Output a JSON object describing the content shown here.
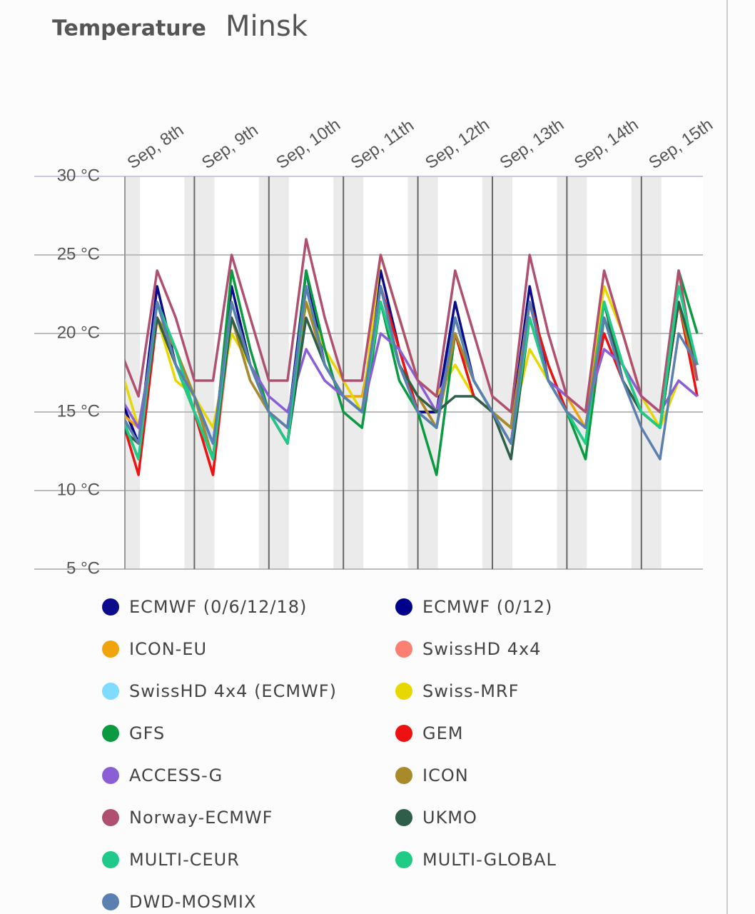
{
  "chart_data": {
    "type": "line",
    "title": "Temperature",
    "subtitle": "Minsk",
    "categories": [
      "Sep, 8th",
      null,
      null,
      null,
      "Sep, 9th",
      null,
      null,
      null,
      "Sep, 10th",
      null,
      null,
      null,
      "Sep, 11th",
      null,
      null,
      null,
      "Sep, 12th",
      null,
      null,
      null,
      "Sep, 13th",
      null,
      null,
      null,
      "Sep, 14th",
      null,
      null,
      null,
      "Sep, 15th",
      null,
      null,
      null
    ],
    "ylim": [
      5,
      30
    ],
    "yticks": [
      {
        "value": 5,
        "label": "5 °C"
      },
      {
        "value": 10,
        "label": "10 °C"
      },
      {
        "value": 15,
        "label": "15 °C"
      },
      {
        "value": 20,
        "label": "20 °C"
      },
      {
        "value": 25,
        "label": "25 °C"
      },
      {
        "value": 30,
        "label": "30 °C"
      }
    ],
    "grid": true,
    "legend": "bottom",
    "series": [
      {
        "name": "ECMWF (0/6/12/18)",
        "color": "#0b0b8c",
        "values": [
          16,
          13,
          23,
          18,
          16,
          12,
          23,
          18,
          15,
          14,
          24,
          18,
          16,
          15,
          24,
          19,
          15,
          15,
          22,
          17,
          15,
          14,
          23,
          17,
          15,
          14,
          22,
          18,
          15,
          14,
          22,
          18
        ]
      },
      {
        "name": "ECMWF (0/12)",
        "color": "#00008b",
        "values": [
          16,
          13,
          22,
          18,
          16,
          13,
          22,
          18,
          15,
          14,
          23,
          18,
          16,
          15,
          23,
          18,
          15,
          15,
          21,
          17,
          15,
          14,
          22,
          17,
          15,
          14,
          22,
          17,
          15,
          14,
          22,
          18
        ]
      },
      {
        "name": "ICON-EU",
        "color": "#f0a30a",
        "values": [
          15,
          14,
          21,
          18,
          15,
          12,
          21,
          17,
          15,
          14,
          23,
          18,
          16,
          16,
          22,
          18,
          16,
          15,
          20,
          17,
          15,
          13,
          21,
          17,
          16,
          14,
          22,
          18,
          15,
          14,
          22,
          17
        ]
      },
      {
        "name": "SwissHD 4x4",
        "color": "#fa8072",
        "values": [
          15,
          12,
          21,
          18,
          15,
          11,
          21,
          17,
          15,
          13,
          23,
          18,
          16,
          15,
          22,
          18,
          16,
          14,
          20,
          17,
          15,
          13,
          21,
          17,
          15,
          14,
          21,
          18,
          15,
          14,
          22,
          17
        ]
      },
      {
        "name": "SwissHD 4x4 (ECMWF)",
        "color": "#7fdbff",
        "values": [
          15,
          12,
          22,
          19,
          15,
          13,
          21,
          17,
          15,
          14,
          23,
          18,
          16,
          15,
          22,
          18,
          15,
          14,
          21,
          17,
          15,
          13,
          22,
          18,
          15,
          14,
          22,
          18,
          15,
          14,
          22,
          18
        ]
      },
      {
        "name": "Swiss-MRF",
        "color": "#e6d800",
        "values": [
          18,
          14,
          21,
          17,
          16,
          14,
          20,
          18,
          15,
          14,
          22,
          19,
          17,
          15,
          25,
          21,
          17,
          16,
          18,
          16,
          15,
          14,
          19,
          17,
          16,
          15,
          23,
          20,
          16,
          14,
          17,
          16
        ]
      },
      {
        "name": "GFS",
        "color": "#0a9a40",
        "values": [
          15,
          12,
          21,
          19,
          16,
          12,
          24,
          19,
          15,
          13,
          24,
          19,
          15,
          14,
          22,
          17,
          15,
          11,
          20,
          16,
          15,
          13,
          22,
          18,
          15,
          12,
          21,
          18,
          15,
          14,
          24,
          20
        ]
      },
      {
        "name": "GEM",
        "color": "#ee1111",
        "values": [
          15,
          11,
          21,
          18,
          15,
          11,
          22,
          18,
          15,
          13,
          23,
          18,
          16,
          15,
          23,
          19,
          15,
          14,
          20,
          16,
          15,
          13,
          22,
          18,
          15,
          14,
          20,
          17,
          15,
          14,
          22,
          16
        ]
      },
      {
        "name": "ACCESS-G",
        "color": "#8a5fd6",
        "values": [
          16,
          14,
          21,
          18,
          16,
          13,
          21,
          18,
          16,
          15,
          19,
          17,
          16,
          15,
          20,
          19,
          17,
          15,
          20,
          17,
          15,
          13,
          21,
          17,
          16,
          15,
          19,
          18,
          16,
          15,
          17,
          16
        ]
      },
      {
        "name": "ICON",
        "color": "#a88a2a",
        "values": [
          15,
          13,
          21,
          19,
          16,
          12,
          21,
          17,
          15,
          14,
          22,
          18,
          16,
          15,
          23,
          18,
          16,
          14,
          20,
          17,
          15,
          14,
          22,
          17,
          15,
          14,
          22,
          18,
          15,
          14,
          22,
          17
        ]
      },
      {
        "name": "Norway-ECMWF",
        "color": "#b05070",
        "values": [
          19,
          16,
          24,
          21,
          17,
          17,
          25,
          21,
          17,
          17,
          26,
          21,
          17,
          17,
          25,
          21,
          17,
          16,
          24,
          20,
          16,
          15,
          25,
          20,
          16,
          15,
          24,
          20,
          16,
          15,
          24,
          17
        ]
      },
      {
        "name": "UKMO",
        "color": "#2f5e4a",
        "values": [
          14,
          13,
          21,
          18,
          15,
          12,
          21,
          18,
          15,
          13,
          21,
          18,
          16,
          15,
          22,
          18,
          16,
          15,
          16,
          16,
          15,
          12,
          21,
          17,
          15,
          13,
          22,
          17,
          15,
          14,
          22,
          18
        ]
      },
      {
        "name": "MULTI-CEUR",
        "color": "#1ec98a",
        "values": [
          15,
          12,
          22,
          19,
          15,
          12,
          22,
          18,
          15,
          13,
          23,
          18,
          16,
          15,
          23,
          18,
          15,
          14,
          21,
          17,
          15,
          13,
          21,
          17,
          15,
          13,
          22,
          18,
          15,
          14,
          23,
          18
        ]
      },
      {
        "name": "MULTI-GLOBAL",
        "color": "#20cc85",
        "values": [
          15,
          12,
          22,
          18,
          15,
          12,
          22,
          18,
          15,
          14,
          23,
          18,
          16,
          15,
          22,
          18,
          15,
          14,
          21,
          17,
          15,
          13,
          21,
          17,
          15,
          13,
          22,
          18,
          15,
          14,
          23,
          18
        ]
      },
      {
        "name": "DWD-MOSMIX",
        "color": "#5a7fb0",
        "values": [
          15,
          13,
          22,
          18,
          16,
          13,
          22,
          18,
          15,
          14,
          23,
          18,
          16,
          15,
          23,
          18,
          15,
          14,
          21,
          17,
          15,
          13,
          22,
          17,
          15,
          14,
          21,
          17,
          14,
          12,
          20,
          18
        ]
      }
    ]
  }
}
